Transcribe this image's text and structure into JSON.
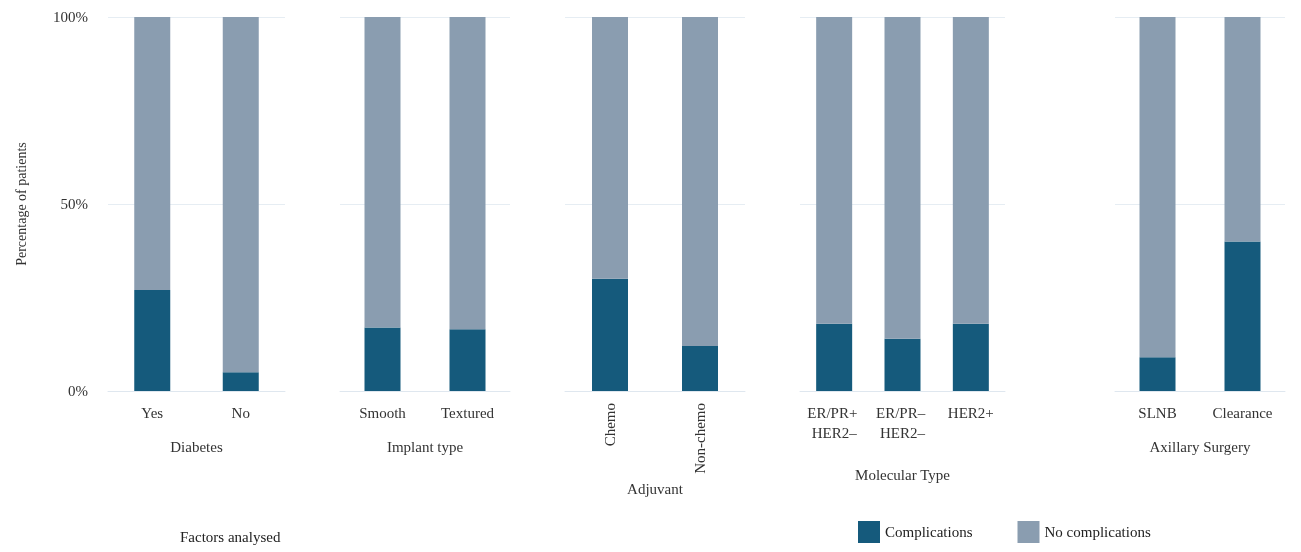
{
  "chart_data": [
    {
      "type": "bar",
      "stacked": true,
      "xlabel": "Diabetes",
      "ylabel": "Percentage of patients",
      "categories": [
        "Yes",
        "No"
      ],
      "ylim": [
        0,
        100
      ],
      "yticks": [
        {
          "value": 0,
          "label": "0%"
        },
        {
          "value": 50,
          "label": "50%"
        },
        {
          "value": 100,
          "label": "100%"
        }
      ],
      "grid": "y",
      "legend": false,
      "annotations": [
        "Factors analysed"
      ],
      "series": [
        {
          "color": "#155a7c",
          "values": [
            27,
            5
          ]
        },
        {
          "color": "#8a9db0",
          "values": [
            73,
            95
          ]
        }
      ]
    },
    {
      "type": "bar",
      "stacked": true,
      "xlabel": "Implant type",
      "categories": [
        "Smooth",
        "Textured"
      ],
      "ylim": [
        0,
        100
      ],
      "yticks": [
        0,
        50,
        100
      ],
      "grid": "y",
      "tick_labels": "x",
      "legend": false,
      "series": [
        {
          "color": "#155a7c",
          "values": [
            17,
            16.5
          ]
        },
        {
          "color": "#8a9db0",
          "values": [
            83,
            83.5
          ]
        }
      ]
    },
    {
      "type": "bar",
      "stacked": true,
      "xlabel": "Adjuvant",
      "categories": [
        "Chemo",
        "Non-chemo"
      ],
      "ylim": [
        0,
        100
      ],
      "yticks": [
        0,
        50,
        100
      ],
      "grid": "y",
      "tick_labels": "x",
      "legend": false,
      "series": [
        {
          "color": "#155a7c",
          "values": [
            30,
            12
          ]
        },
        {
          "color": "#8a9db0",
          "values": [
            70,
            88
          ]
        }
      ]
    },
    {
      "type": "bar",
      "stacked": true,
      "xlabel": "Molecular Type",
      "categories": [
        "ER/PR+ HER2–",
        "ER/PR– HER2–",
        "HER2+"
      ],
      "ylim": [
        0,
        100
      ],
      "yticks": [
        0,
        50,
        100
      ],
      "grid": "y",
      "tick_labels": "x",
      "legend": false,
      "series": [
        {
          "color": "#155a7c",
          "values": [
            18,
            14,
            18
          ]
        },
        {
          "color": "#8a9db0",
          "values": [
            82,
            86,
            82
          ]
        }
      ]
    },
    {
      "type": "bar",
      "stacked": true,
      "xlabel": "Axillary Surgery",
      "categories": [
        "SLNB",
        "Clearance"
      ],
      "ylim": [
        0,
        100
      ],
      "yticks": [
        0,
        50,
        100
      ],
      "grid": "y",
      "tick_labels": "x",
      "legend": "bottom left",
      "series": [
        {
          "name": "Complications",
          "color": "#155a7c",
          "values": [
            9,
            40
          ]
        },
        {
          "name": "No complications",
          "color": "#8a9db0",
          "values": [
            91,
            60
          ]
        }
      ]
    }
  ]
}
